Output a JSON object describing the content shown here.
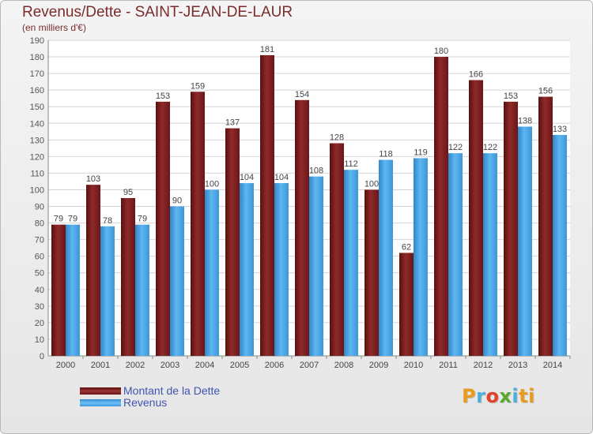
{
  "header": {
    "title": "Revenus/Dette - SAINT-JEAN-DE-LAUR",
    "subtitle": "(en milliers d'€)"
  },
  "logo": {
    "text": "Proxiti",
    "letters": [
      "P",
      "r",
      "o",
      "x",
      "i",
      "ti"
    ]
  },
  "chart_data": {
    "type": "bar",
    "categories": [
      "2000",
      "2001",
      "2002",
      "2003",
      "2004",
      "2005",
      "2006",
      "2007",
      "2008",
      "2009",
      "2010",
      "2011",
      "2012",
      "2013",
      "2014"
    ],
    "series": [
      {
        "name": "Montant de la Dette",
        "color": "#7d1f1f",
        "values": [
          79,
          103,
          95,
          153,
          159,
          137,
          181,
          154,
          128,
          100,
          62,
          180,
          166,
          153,
          156
        ]
      },
      {
        "name": "Revenus",
        "color": "#4aa6e6",
        "values": [
          79,
          78,
          79,
          90,
          100,
          104,
          104,
          108,
          112,
          118,
          119,
          122,
          122,
          138,
          133
        ]
      }
    ],
    "ylim": [
      0,
      190
    ],
    "yticks": [
      0,
      10,
      20,
      30,
      40,
      50,
      60,
      70,
      80,
      90,
      100,
      110,
      120,
      130,
      140,
      150,
      160,
      170,
      180,
      190
    ],
    "grid": true,
    "legend_position": "bottom-left"
  }
}
